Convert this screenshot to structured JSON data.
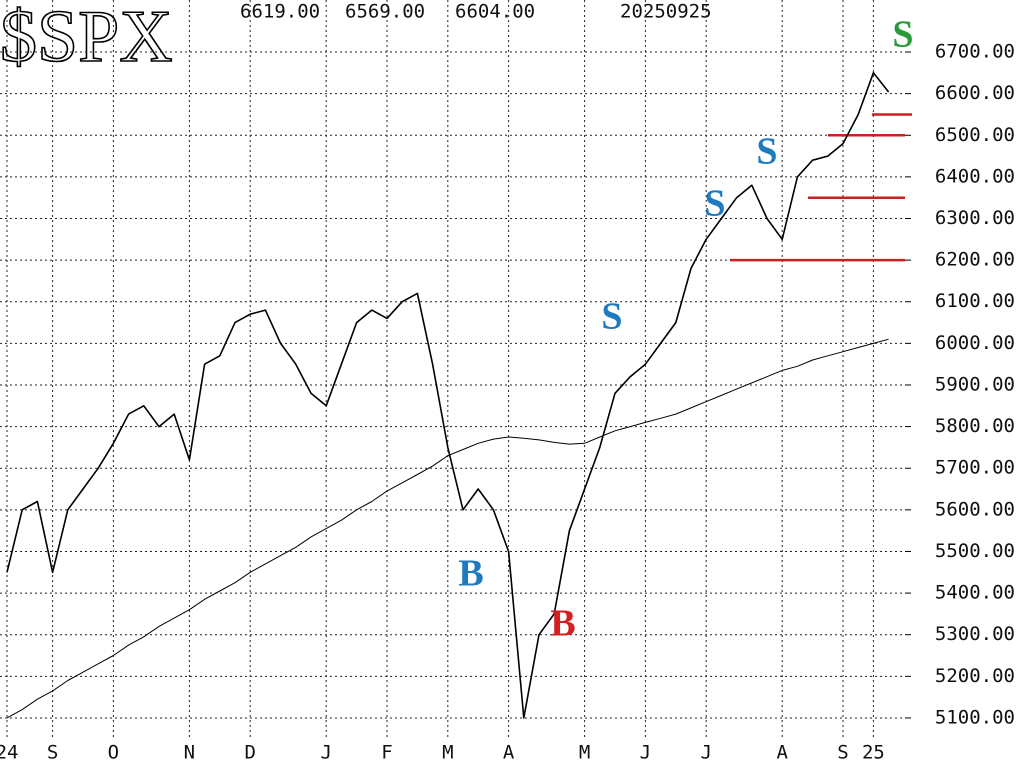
{
  "chart_data": {
    "type": "line",
    "title": "$SPX",
    "quote": {
      "high": "6619.00",
      "low": "6569.00",
      "close": "6604.00",
      "date": "20250925"
    },
    "categories": [
      "24",
      null,
      null,
      "S",
      null,
      null,
      null,
      "O",
      null,
      null,
      null,
      null,
      "N",
      null,
      null,
      null,
      "D",
      null,
      null,
      null,
      null,
      "J",
      null,
      null,
      null,
      "F",
      null,
      null,
      null,
      "M",
      null,
      null,
      null,
      "A",
      null,
      null,
      null,
      null,
      "M",
      null,
      null,
      null,
      "J",
      null,
      null,
      null,
      "J",
      null,
      null,
      null,
      null,
      "A",
      null,
      null,
      null,
      "S",
      null,
      "25",
      null
    ],
    "series": [
      {
        "name": "Price",
        "color": "#000000",
        "width": 1.6,
        "values": [
          5450,
          5600,
          5620,
          5450,
          5600,
          5650,
          5700,
          5760,
          5830,
          5850,
          5800,
          5830,
          5720,
          5950,
          5970,
          6050,
          6070,
          6080,
          6000,
          5950,
          5880,
          5850,
          5950,
          6050,
          6080,
          6060,
          6100,
          6120,
          5950,
          5750,
          5600,
          5650,
          5600,
          5500,
          5100,
          5300,
          5350,
          5550,
          5650,
          5750,
          5880,
          5920,
          5950,
          6000,
          6050,
          6180,
          6250,
          6300,
          6350,
          6380,
          6300,
          6250,
          6400,
          6440,
          6450,
          6480,
          6550,
          6650,
          6604
        ]
      },
      {
        "name": "200-day MA",
        "color": "#000000",
        "width": 1,
        "values": [
          5100,
          5120,
          5145,
          5165,
          5190,
          5210,
          5230,
          5250,
          5275,
          5295,
          5320,
          5340,
          5360,
          5385,
          5405,
          5425,
          5450,
          5470,
          5490,
          5510,
          5535,
          5555,
          5575,
          5600,
          5620,
          5645,
          5665,
          5685,
          5705,
          5730,
          5745,
          5760,
          5770,
          5775,
          5772,
          5768,
          5762,
          5758,
          5760,
          5775,
          5790,
          5800,
          5810,
          5820,
          5830,
          5845,
          5860,
          5875,
          5890,
          5905,
          5920,
          5935,
          5945,
          5960,
          5970,
          5980,
          5990,
          6000,
          6010
        ]
      }
    ],
    "support_levels": [
      6200,
      6350,
      6500,
      6550
    ],
    "support_color": "#cc1f1f",
    "annotations": [
      {
        "text": "S",
        "color": "#2a9a3c"
      },
      {
        "text": "S",
        "color": "#1f7bbf"
      },
      {
        "text": "S",
        "color": "#1f7bbf"
      },
      {
        "text": "S",
        "color": "#1f7bbf"
      },
      {
        "text": "B",
        "color": "#1f7bbf"
      },
      {
        "text": "B",
        "color": "#d42020"
      }
    ],
    "ylim": [
      5047,
      6825
    ],
    "yticks": [
      {
        "value": 5100,
        "label": "5100.00"
      },
      {
        "value": 5200,
        "label": "5200.00"
      },
      {
        "value": 5300,
        "label": "5300.00"
      },
      {
        "value": 5400,
        "label": "5400.00"
      },
      {
        "value": 5500,
        "label": "5500.00"
      },
      {
        "value": 5600,
        "label": "5600.00"
      },
      {
        "value": 5700,
        "label": "5700.00"
      },
      {
        "value": 5800,
        "label": "5800.00"
      },
      {
        "value": 5900,
        "label": "5900.00"
      },
      {
        "value": 6000,
        "label": "6000.00"
      },
      {
        "value": 6100,
        "label": "6100.00"
      },
      {
        "value": 6200,
        "label": "6200.00"
      },
      {
        "value": 6300,
        "label": "6300.00"
      },
      {
        "value": 6400,
        "label": "6400.00"
      },
      {
        "value": 6500,
        "label": "6500.00"
      },
      {
        "value": 6600,
        "label": "6600.00"
      },
      {
        "value": 6700,
        "label": "6700.00"
      }
    ],
    "grid": true
  }
}
